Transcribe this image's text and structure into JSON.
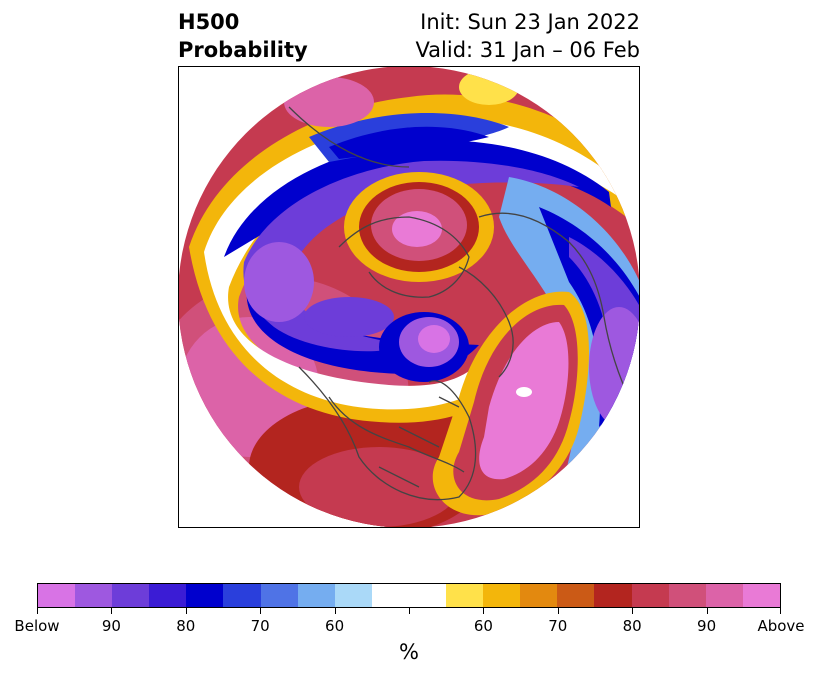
{
  "title": {
    "left_line1": "H500",
    "left_line2": "Probability",
    "right_line1": "Init: Sun 23 Jan 2022",
    "right_line2": "Valid: 31 Jan – 06 Feb"
  },
  "colorbar": {
    "colors": [
      "#d873e5",
      "#9e58e0",
      "#6d3dd9",
      "#3b1cd5",
      "#0000cd",
      "#2a3fdc",
      "#4f73e6",
      "#75adf0",
      "#aad9f8",
      "#ffffff",
      "#ffffff",
      "#ffe14a",
      "#f3b60b",
      "#e3890f",
      "#cb5a16",
      "#b3251f",
      "#c53a50",
      "#d0507a",
      "#dc63a8",
      "#e97ad6"
    ],
    "tick_labels": [
      "Below",
      "90",
      "80",
      "70",
      "60",
      "",
      "60",
      "70",
      "80",
      "90",
      "Above"
    ],
    "units": "%"
  }
}
